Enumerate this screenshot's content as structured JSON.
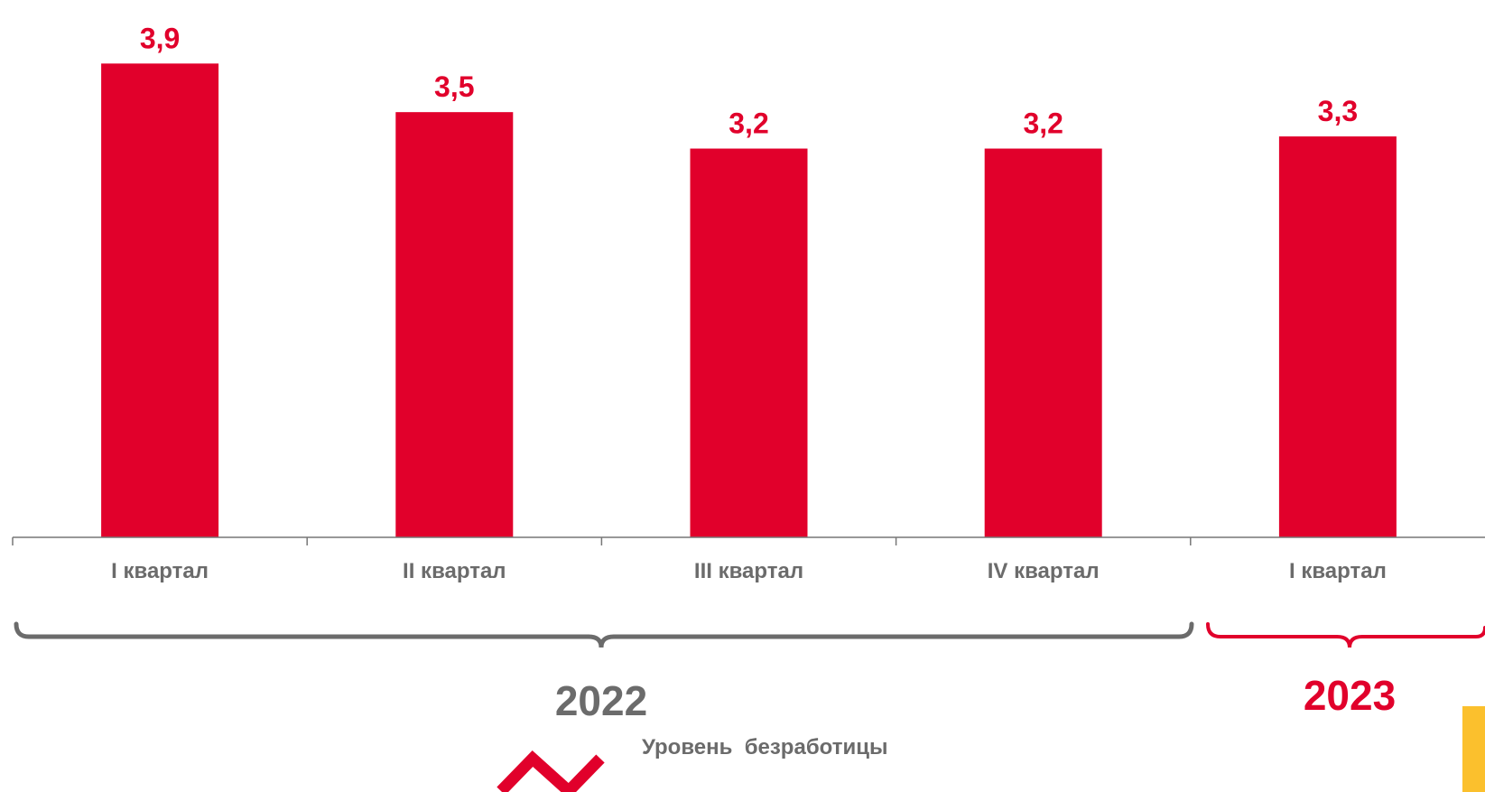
{
  "colors": {
    "bar": "#e1002b",
    "axis": "#777777",
    "tick_text": "#6b6b6b",
    "year_2022": "#6b6b6b",
    "year_2023": "#e1002b",
    "accent_yellow": "#fbc02d"
  },
  "chart_data": {
    "type": "bar",
    "categories": [
      "I квартал",
      "II квартал",
      "III квартал",
      "IV квартал",
      "I квартал"
    ],
    "values": [
      3.9,
      3.5,
      3.2,
      3.2,
      3.3
    ],
    "value_labels": [
      "3,9",
      "3,5",
      "3,2",
      "3,2",
      "3,3"
    ],
    "ylim": [
      0,
      4.2
    ],
    "grid": false,
    "title": "",
    "xlabel": "",
    "ylabel": "",
    "groups": [
      {
        "label": "2022",
        "category_span": [
          0,
          3
        ]
      },
      {
        "label": "2023",
        "category_span": [
          4,
          4
        ]
      }
    ]
  },
  "legend": {
    "icon": "zigzag-line-icon",
    "label": "Уровень  безработицы"
  }
}
